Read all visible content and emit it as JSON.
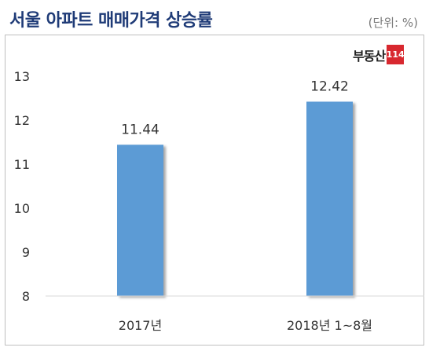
{
  "header": {
    "title": "서울 아파트 매매가격 상승률",
    "unit": "(단위: %)"
  },
  "logo": {
    "text": "부동산",
    "badge": "114"
  },
  "colors": {
    "bar": "#5b9bd5",
    "title": "#1f3b77",
    "logo_badge": "#d8282f"
  },
  "chart_data": {
    "type": "bar",
    "title": "서울 아파트 매매가격 상승률",
    "unit": "(단위: %)",
    "categories": [
      "2017년",
      "2018년 1~8월"
    ],
    "values": [
      11.44,
      12.42
    ],
    "data_labels": [
      "11.44",
      "12.42"
    ],
    "ylim": [
      8,
      13
    ],
    "yticks": [
      8,
      9,
      10,
      11,
      12,
      13
    ],
    "grid": false,
    "legend": "none"
  }
}
